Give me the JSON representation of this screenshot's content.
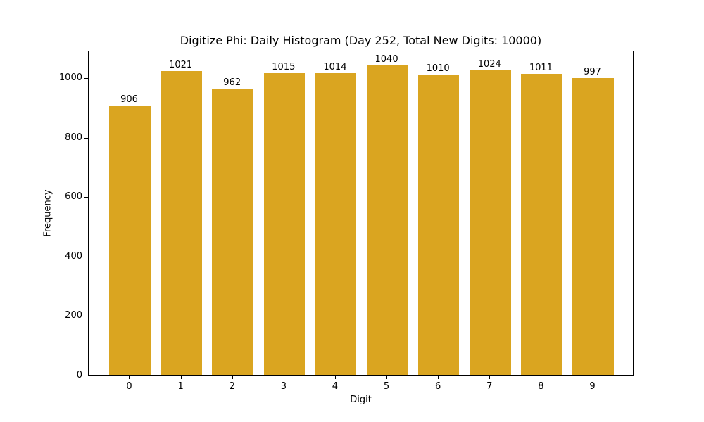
{
  "chart_data": {
    "type": "bar",
    "title": "Digitize Phi: Daily Histogram (Day 252, Total New Digits: 10000)",
    "xlabel": "Digit",
    "ylabel": "Frequency",
    "categories": [
      "0",
      "1",
      "2",
      "3",
      "4",
      "5",
      "6",
      "7",
      "8",
      "9"
    ],
    "values": [
      906,
      1021,
      962,
      1015,
      1014,
      1040,
      1010,
      1024,
      1011,
      997
    ],
    "bar_labels": [
      "906",
      "1021",
      "962",
      "1015",
      "1014",
      "1040",
      "1010",
      "1024",
      "1011",
      "997"
    ],
    "ylim": [
      0,
      1092
    ],
    "yticks": [
      "0",
      "200",
      "400",
      "600",
      "800",
      "1000"
    ],
    "bar_color": "#DAA520",
    "grid": false,
    "legend": null
  }
}
